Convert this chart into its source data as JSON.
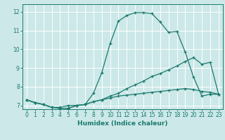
{
  "title": "",
  "xlabel": "Humidex (Indice chaleur)",
  "ylabel": "",
  "bg_color": "#cce8e8",
  "grid_color": "#ffffff",
  "line_color": "#1a7a6e",
  "xlim": [
    -0.5,
    23.5
  ],
  "ylim": [
    6.8,
    12.4
  ],
  "xticks": [
    0,
    1,
    2,
    3,
    4,
    5,
    6,
    7,
    8,
    9,
    10,
    11,
    12,
    13,
    14,
    15,
    16,
    17,
    18,
    19,
    20,
    21,
    22,
    23
  ],
  "yticks": [
    7,
    8,
    9,
    10,
    11,
    12
  ],
  "line1_x": [
    0,
    1,
    2,
    3,
    4,
    5,
    6,
    7,
    8,
    9,
    10,
    11,
    12,
    13,
    14,
    15,
    16,
    17,
    18,
    19,
    20,
    21,
    22,
    23
  ],
  "line1_y": [
    7.3,
    7.15,
    7.05,
    6.9,
    6.9,
    7.0,
    7.0,
    7.05,
    7.65,
    8.75,
    10.3,
    11.5,
    11.8,
    11.95,
    11.95,
    11.9,
    11.45,
    10.9,
    10.95,
    9.85,
    8.5,
    7.5,
    7.6,
    7.6
  ],
  "line2_x": [
    0,
    1,
    2,
    3,
    4,
    5,
    6,
    7,
    8,
    9,
    10,
    11,
    12,
    13,
    14,
    15,
    16,
    17,
    18,
    19,
    20,
    21,
    22,
    23
  ],
  "line2_y": [
    7.3,
    7.15,
    7.05,
    6.9,
    6.85,
    6.85,
    7.0,
    7.05,
    7.2,
    7.3,
    7.5,
    7.65,
    7.9,
    8.1,
    8.3,
    8.55,
    8.7,
    8.9,
    9.1,
    9.35,
    9.55,
    9.2,
    9.3,
    7.6
  ],
  "line3_x": [
    0,
    1,
    2,
    3,
    4,
    5,
    6,
    7,
    8,
    9,
    10,
    11,
    12,
    13,
    14,
    15,
    16,
    17,
    18,
    19,
    20,
    21,
    22,
    23
  ],
  "line3_y": [
    7.3,
    7.15,
    7.05,
    6.9,
    6.85,
    6.85,
    7.0,
    7.05,
    7.2,
    7.3,
    7.4,
    7.5,
    7.55,
    7.6,
    7.65,
    7.7,
    7.75,
    7.8,
    7.85,
    7.9,
    7.85,
    7.75,
    7.7,
    7.6
  ],
  "tick_fontsize": 5.5,
  "xlabel_fontsize": 6.5,
  "marker_size": 3.5,
  "line_width": 0.9
}
